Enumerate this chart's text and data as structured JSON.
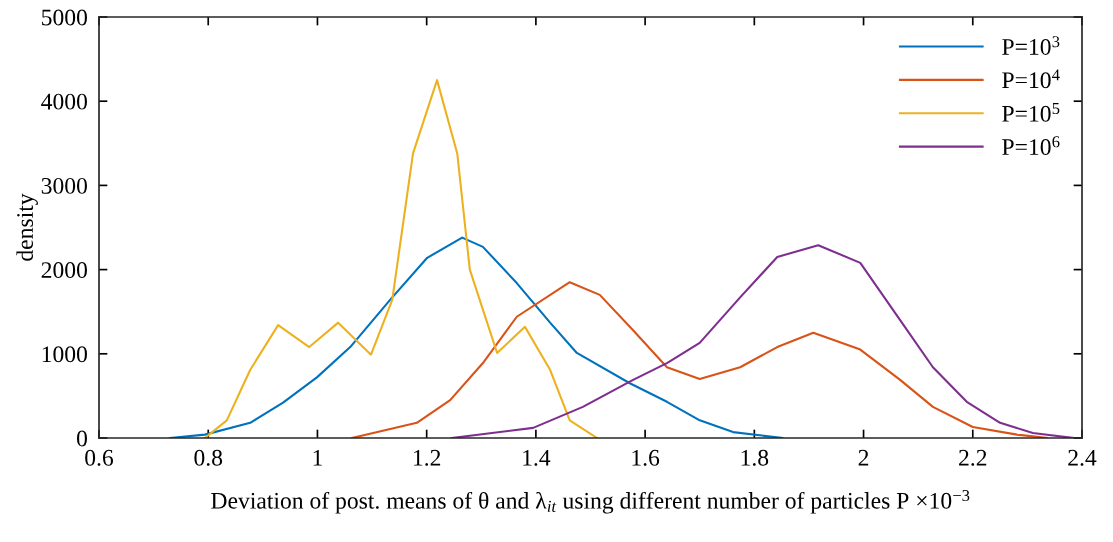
{
  "chart_data": {
    "type": "line",
    "xlabel": "Deviation of post. means of θ and λ$_{it}$ using different number of particles P ×10$^{−3}$",
    "ylabel": "density",
    "xlim": [
      0.6,
      2.4
    ],
    "xticks": [
      0.6,
      0.8,
      1,
      1.2,
      1.4,
      1.6,
      1.8,
      2,
      2.2,
      2.4
    ],
    "ylim": [
      0,
      5000
    ],
    "yticks": [
      0,
      1000,
      2000,
      3000,
      4000,
      5000
    ],
    "grid": false,
    "legend": "top right",
    "marker": "none",
    "line_style": "solid",
    "series": [
      {
        "name": "P=10$^{3}$",
        "color": "#0072bd",
        "x": [
          0.73,
          0.794,
          0.877,
          0.937,
          0.999,
          1.06,
          1.133,
          1.201,
          1.265,
          1.303,
          1.365,
          1.426,
          1.475,
          1.572,
          1.64,
          1.7,
          1.761,
          1.851
        ],
        "values": [
          0,
          40,
          180,
          420,
          720,
          1080,
          1640,
          2140,
          2380,
          2270,
          1840,
          1370,
          1010,
          650,
          430,
          210,
          70,
          0
        ]
      },
      {
        "name": "P=10$^{4}$",
        "color": "#d95319",
        "x": [
          1.063,
          1.182,
          1.243,
          1.303,
          1.365,
          1.462,
          1.517,
          1.578,
          1.64,
          1.7,
          1.774,
          1.842,
          1.908,
          1.994,
          2.067,
          2.127,
          2.2,
          2.281,
          2.336
        ],
        "values": [
          0,
          180,
          450,
          890,
          1440,
          1850,
          1700,
          1280,
          840,
          700,
          840,
          1080,
          1250,
          1050,
          690,
          370,
          130,
          40,
          0
        ]
      },
      {
        "name": "P=10$^{5}$",
        "color": "#edb120",
        "x": [
          0.794,
          0.834,
          0.877,
          0.928,
          0.985,
          1.038,
          1.098,
          1.137,
          1.175,
          1.219,
          1.256,
          1.279,
          1.329,
          1.38,
          1.426,
          1.462,
          1.512
        ],
        "values": [
          0,
          210,
          810,
          1340,
          1080,
          1370,
          990,
          1640,
          3380,
          4250,
          3380,
          2000,
          1010,
          1320,
          810,
          210,
          0
        ]
      },
      {
        "name": "P=10$^{6}$",
        "color": "#7e2f8e",
        "x": [
          1.246,
          1.395,
          1.486,
          1.578,
          1.64,
          1.7,
          1.774,
          1.842,
          1.917,
          1.994,
          2.067,
          2.127,
          2.189,
          2.25,
          2.31,
          2.384
        ],
        "values": [
          0,
          120,
          370,
          690,
          890,
          1130,
          1670,
          2150,
          2290,
          2080,
          1400,
          840,
          430,
          180,
          60,
          0
        ]
      }
    ]
  }
}
